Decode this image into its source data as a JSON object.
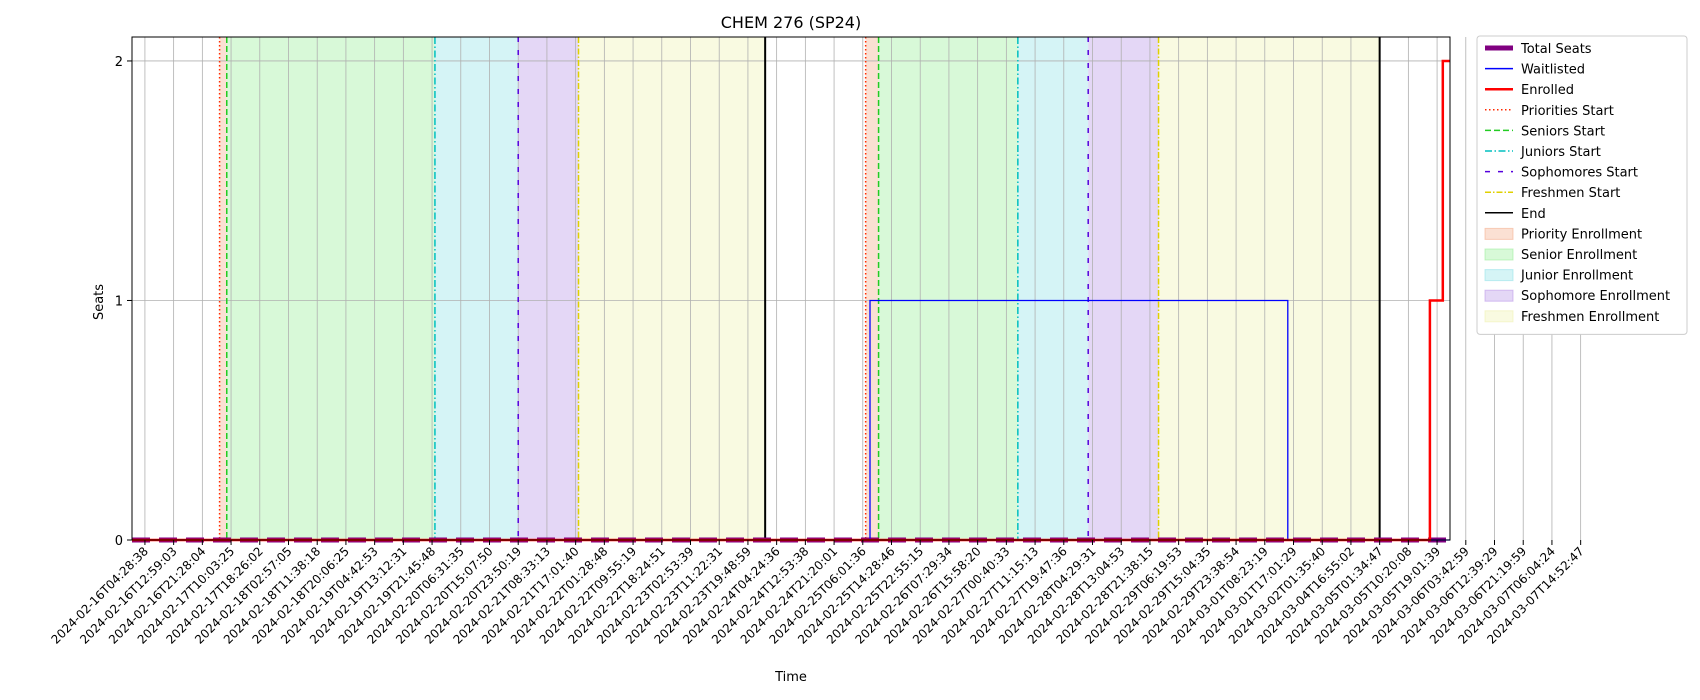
{
  "chart_data": {
    "type": "line",
    "title": "CHEM 276 (SP24)",
    "xlabel": "Time",
    "ylabel": "Seats",
    "ylim": [
      0,
      2.1
    ],
    "yticks": [
      "0",
      "1",
      "2"
    ],
    "grid": true,
    "legend_position": "outside-right",
    "x_ticks": [
      "2024-02-16T04:28:38",
      "2024-02-16T12:59:03",
      "2024-02-16T21:28:04",
      "2024-02-17T10:03:25",
      "2024-02-17T18:26:02",
      "2024-02-18T02:57:05",
      "2024-02-18T11:38:18",
      "2024-02-18T20:06:25",
      "2024-02-19T04:42:53",
      "2024-02-19T13:12:31",
      "2024-02-19T21:45:48",
      "2024-02-20T06:31:35",
      "2024-02-20T15:07:50",
      "2024-02-20T23:50:19",
      "2024-02-21T08:33:13",
      "2024-02-21T17:01:40",
      "2024-02-22T01:28:48",
      "2024-02-22T09:55:19",
      "2024-02-22T18:24:51",
      "2024-02-23T02:53:39",
      "2024-02-23T11:22:31",
      "2024-02-23T19:48:59",
      "2024-02-24T04:24:36",
      "2024-02-24T12:53:38",
      "2024-02-24T21:20:01",
      "2024-02-25T06:01:36",
      "2024-02-25T14:28:46",
      "2024-02-25T22:55:15",
      "2024-02-26T07:29:34",
      "2024-02-26T15:58:20",
      "2024-02-27T00:40:33",
      "2024-02-27T11:15:13",
      "2024-02-27T19:47:36",
      "2024-02-28T04:29:31",
      "2024-02-28T13:04:53",
      "2024-02-28T21:38:15",
      "2024-02-29T06:19:53",
      "2024-02-29T15:04:35",
      "2024-02-29T23:38:54",
      "2024-03-01T08:23:19",
      "2024-03-01T17:01:29",
      "2024-03-02T01:35:40",
      "2024-03-04T16:55:02",
      "2024-03-05T01:34:47",
      "2024-03-05T10:20:08",
      "2024-03-05T19:01:39",
      "2024-03-06T03:42:59",
      "2024-03-06T12:39:29",
      "2024-03-06T21:19:59",
      "2024-03-07T06:04:24",
      "2024-03-07T14:52:47"
    ],
    "x_range": [
      -0.45,
      45.45
    ],
    "periods": [
      {
        "name": "Priority Enrollment",
        "start": 2.6,
        "end": 2.85,
        "color": "#f4a582"
      },
      {
        "name": "Senior Enrollment",
        "start": 2.85,
        "end": 10.1,
        "color": "#90ee90"
      },
      {
        "name": "Junior Enrollment",
        "start": 10.1,
        "end": 13.0,
        "color": "#87dfe6"
      },
      {
        "name": "Sophomore Enrollment",
        "start": 13.0,
        "end": 15.1,
        "color": "#b38ce6"
      },
      {
        "name": "Freshmen Enrollment",
        "start": 15.1,
        "end": 21.6,
        "color": "#eef0a8"
      },
      {
        "name": "Priority Enrollment",
        "start": 25.1,
        "end": 25.55,
        "color": "#f4a582"
      },
      {
        "name": "Senior Enrollment",
        "start": 25.55,
        "end": 30.4,
        "color": "#90ee90"
      },
      {
        "name": "Junior Enrollment",
        "start": 30.4,
        "end": 32.85,
        "color": "#87dfe6"
      },
      {
        "name": "Sophomore Enrollment",
        "start": 32.85,
        "end": 35.3,
        "color": "#b38ce6"
      },
      {
        "name": "Freshmen Enrollment",
        "start": 35.3,
        "end": 43.0,
        "color": "#eef0a8"
      }
    ],
    "markers": [
      {
        "name": "Priorities Start",
        "x": 2.6,
        "color": "#ff2a00",
        "dash": "1.5,2.5"
      },
      {
        "name": "Seniors Start",
        "x": 2.85,
        "color": "#22cc22",
        "dash": "6,3"
      },
      {
        "name": "Juniors Start",
        "x": 10.1,
        "color": "#00bfbf",
        "dash": "7,2.5,1.5,2.5"
      },
      {
        "name": "Sophomores Start",
        "x": 13.0,
        "color": "#5500dd",
        "dash": "5,8"
      },
      {
        "name": "Freshmen Start",
        "x": 15.1,
        "color": "#e0d000",
        "dash": "6,2,1.5,2"
      },
      {
        "name": "End",
        "x": 21.6,
        "color": "#000000",
        "dash": ""
      },
      {
        "name": "Priorities Start",
        "x": 25.1,
        "color": "#ff2a00",
        "dash": "1.5,2.5"
      },
      {
        "name": "Seniors Start",
        "x": 25.55,
        "color": "#22cc22",
        "dash": "6,3"
      },
      {
        "name": "Juniors Start",
        "x": 30.4,
        "color": "#00bfbf",
        "dash": "7,2.5,1.5,2.5"
      },
      {
        "name": "Sophomores Start",
        "x": 32.85,
        "color": "#5500dd",
        "dash": "5,8"
      },
      {
        "name": "Freshmen Start",
        "x": 35.3,
        "color": "#e0d000",
        "dash": "6,2,1.5,2"
      },
      {
        "name": "End",
        "x": 43.0,
        "color": "#000000",
        "dash": ""
      }
    ],
    "series": [
      {
        "name": "Total Seats",
        "color": "#800080",
        "style": "thick-dashed",
        "points": [
          [
            -0.45,
            0
          ],
          [
            45.45,
            0
          ]
        ]
      },
      {
        "name": "Waitlisted",
        "color": "#0000ff",
        "style": "solid",
        "points": [
          [
            -0.45,
            0
          ],
          [
            25.25,
            0
          ],
          [
            25.25,
            1
          ],
          [
            39.8,
            1
          ],
          [
            39.8,
            0
          ],
          [
            45.45,
            0
          ]
        ]
      },
      {
        "name": "Enrolled",
        "color": "#ff0000",
        "style": "solid-thick",
        "points": [
          [
            -0.45,
            0
          ],
          [
            44.75,
            0
          ],
          [
            44.75,
            1
          ],
          [
            45.2,
            1
          ],
          [
            45.2,
            2
          ],
          [
            45.45,
            2
          ]
        ]
      }
    ],
    "legend": [
      {
        "label": "Total Seats",
        "kind": "thick",
        "color": "#800080"
      },
      {
        "label": "Waitlisted",
        "kind": "line",
        "color": "#0000ff"
      },
      {
        "label": "Enrolled",
        "kind": "line-thick",
        "color": "#ff0000"
      },
      {
        "label": "Priorities Start",
        "kind": "dash",
        "color": "#ff2a00",
        "dash": "1.5,2.5"
      },
      {
        "label": "Seniors Start",
        "kind": "dash",
        "color": "#22cc22",
        "dash": "6,3"
      },
      {
        "label": "Juniors Start",
        "kind": "dash",
        "color": "#00bfbf",
        "dash": "7,2.5,1.5,2.5"
      },
      {
        "label": "Sophomores Start",
        "kind": "dash",
        "color": "#5500dd",
        "dash": "5,8"
      },
      {
        "label": "Freshmen Start",
        "kind": "dash",
        "color": "#e0d000",
        "dash": "6,2,1.5,2"
      },
      {
        "label": "End",
        "kind": "line",
        "color": "#000000"
      },
      {
        "label": "Priority Enrollment",
        "kind": "patch",
        "color": "#f4a582"
      },
      {
        "label": "Senior Enrollment",
        "kind": "patch",
        "color": "#90ee90"
      },
      {
        "label": "Junior Enrollment",
        "kind": "patch",
        "color": "#87dfe6"
      },
      {
        "label": "Sophomore Enrollment",
        "kind": "patch",
        "color": "#b38ce6"
      },
      {
        "label": "Freshmen Enrollment",
        "kind": "patch",
        "color": "#eef0a8"
      }
    ]
  }
}
